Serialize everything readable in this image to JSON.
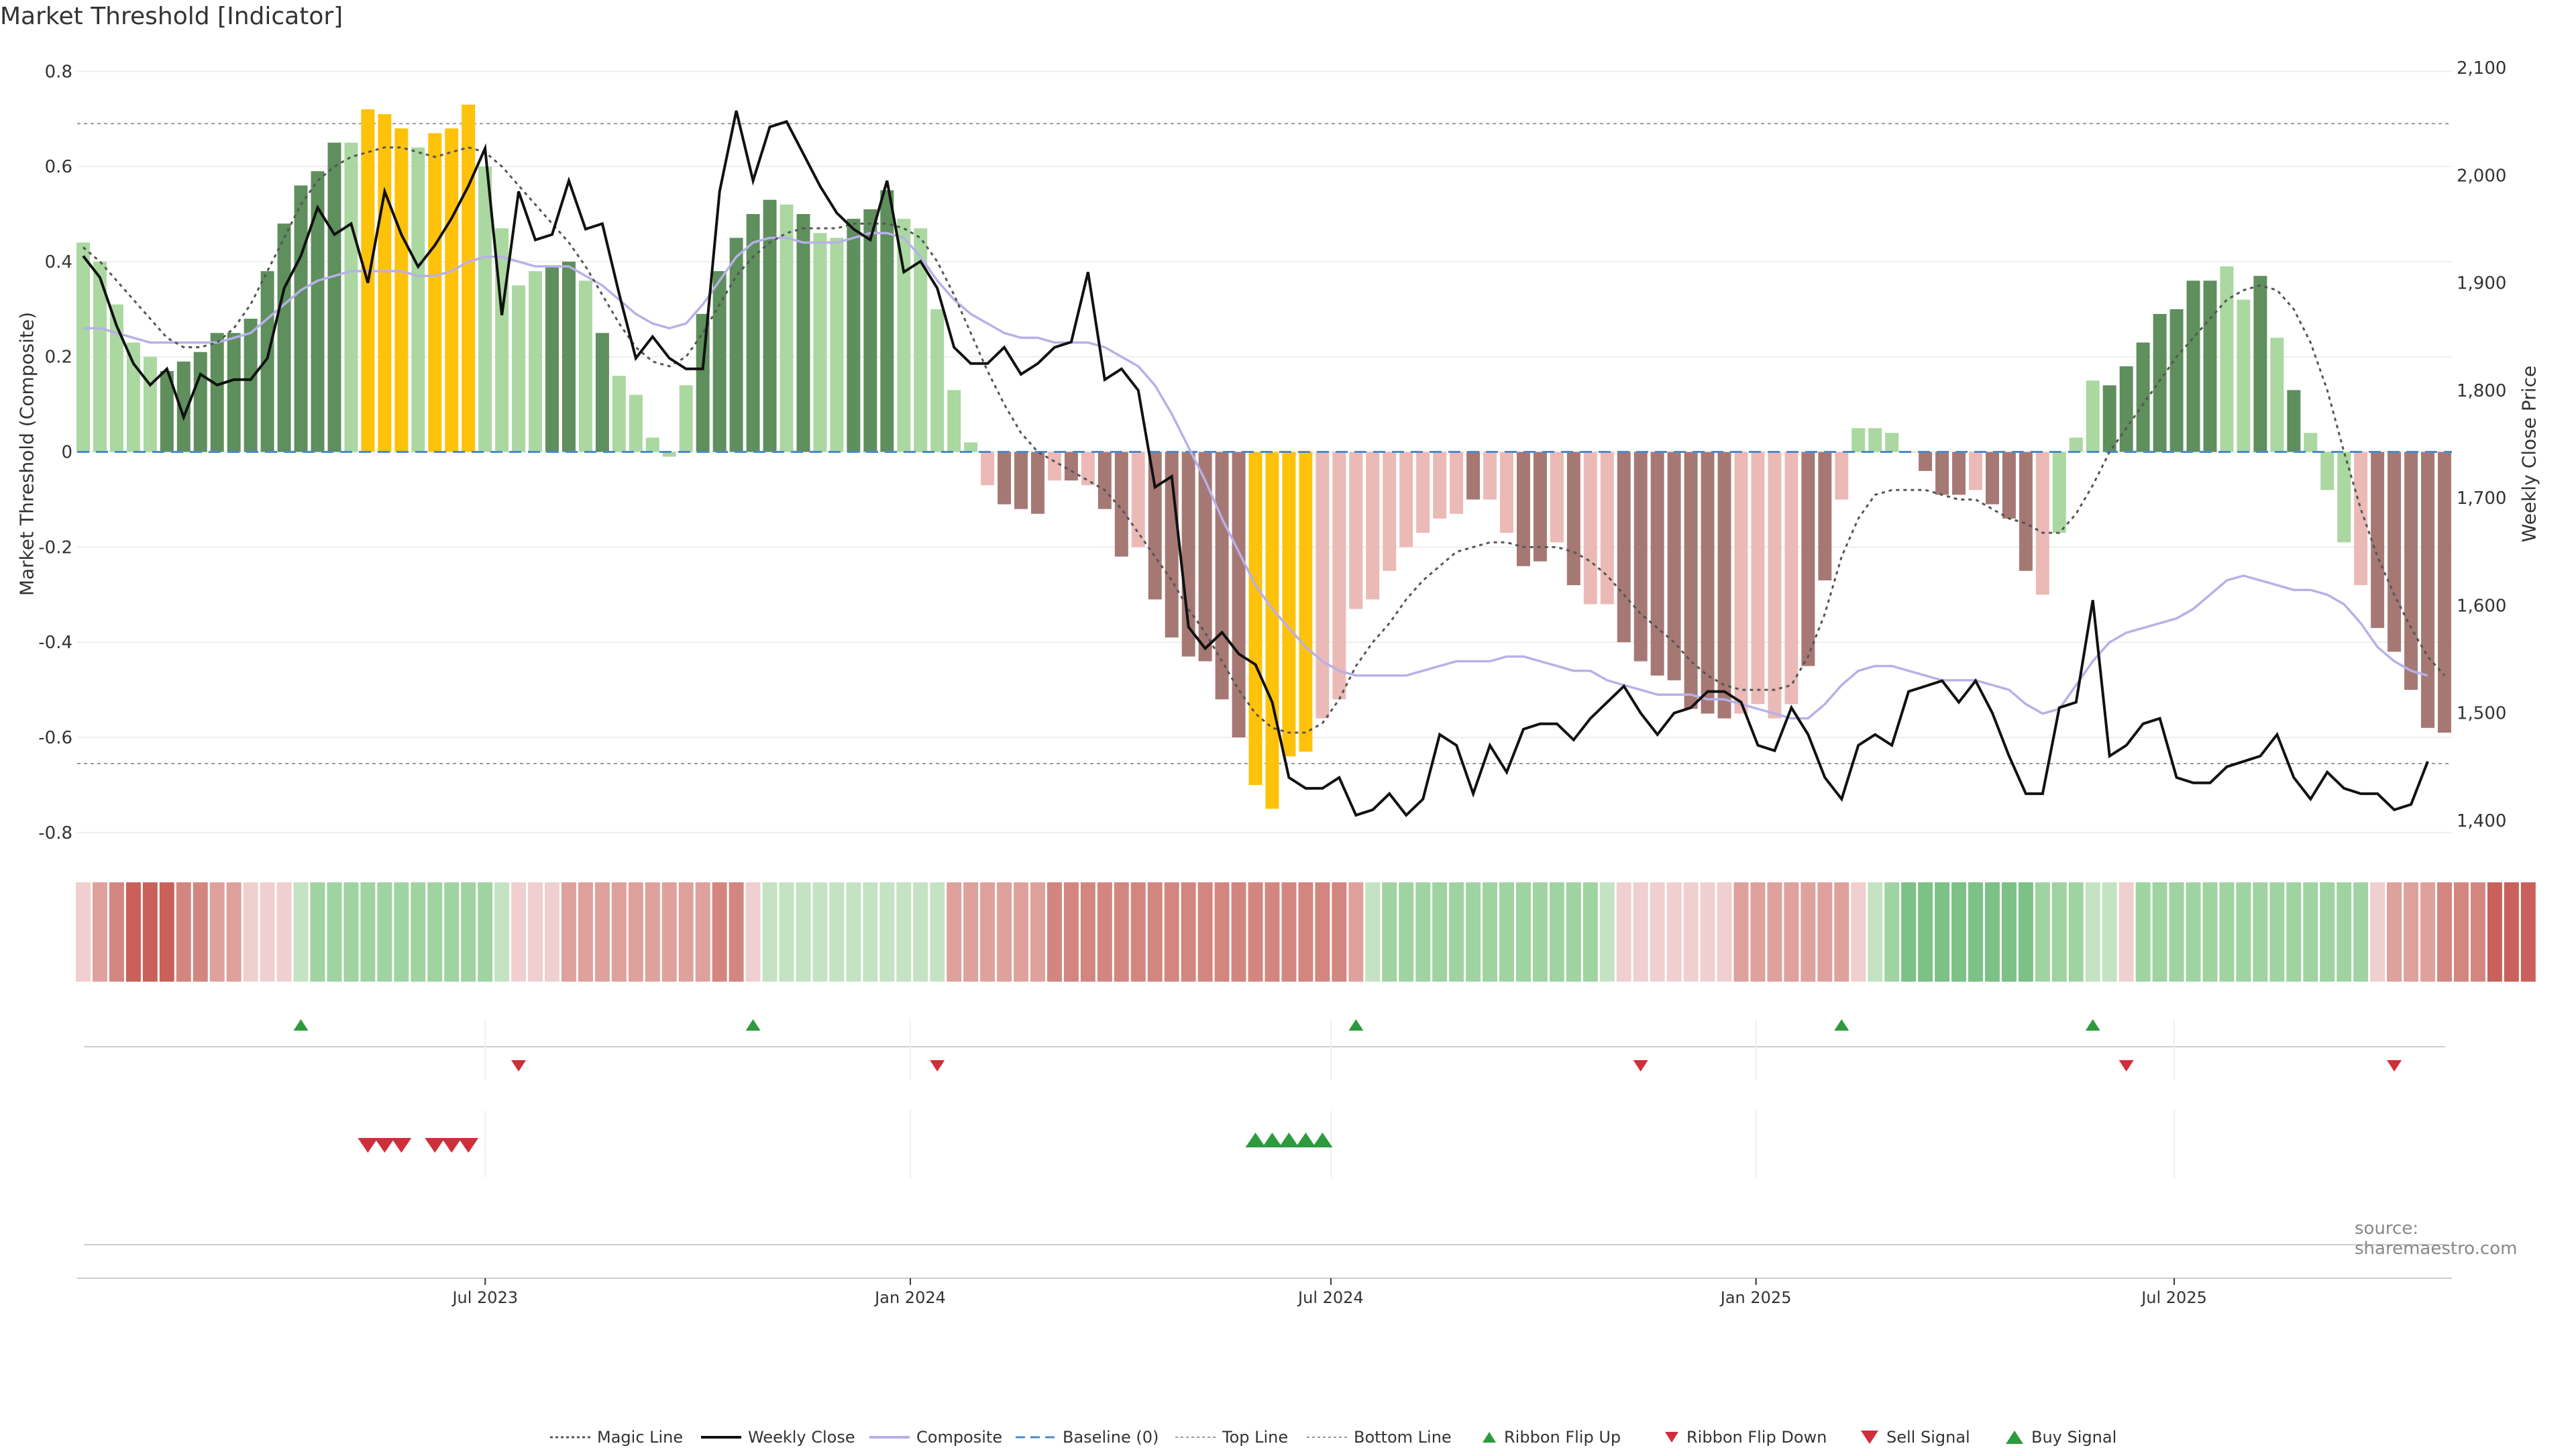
{
  "title": "Market Threshold [Indicator]",
  "source": "source: sharemaestro.com",
  "colors": {
    "dark_green": "#5e8f5c",
    "light_green": "#aad8a0",
    "yellow": "#ffc20a",
    "light_red": "#ebbab6",
    "dark_red": "#a67874",
    "magic": "#555555",
    "close": "#111111",
    "composite": "#b8b0e8",
    "baseline": "#4c8ac8",
    "signal_up": "#2e9a3e",
    "signal_down": "#d12d3a"
  },
  "chart_data": {
    "type": "bar",
    "title": "Market Threshold [Indicator]",
    "ylabel": "Market Threshold (Composite)",
    "ylabel_right": "Weekly Close Price",
    "ylim": [
      -0.82,
      0.83
    ],
    "ylim_right": [
      1380,
      2110
    ],
    "yticks": [
      "0.8",
      "0.6",
      "0.4",
      "0.2",
      "0",
      "-0.2",
      "-0.4",
      "-0.6",
      "-0.8"
    ],
    "yticks_right": [
      "2,100",
      "2,000",
      "1,900",
      "1,800",
      "1,700",
      "1,600",
      "1,500",
      "1,400"
    ],
    "x_start": "2023-01-08",
    "x_end": "2025-10-26",
    "x_ticks": [
      {
        "label": "Jul 2023",
        "date": "2023-07-01"
      },
      {
        "label": "Jan 2024",
        "date": "2024-01-01"
      },
      {
        "label": "Jul 2024",
        "date": "2024-07-01"
      },
      {
        "label": "Jan 2025",
        "date": "2025-01-01"
      },
      {
        "label": "Jul 2025",
        "date": "2025-07-01"
      }
    ],
    "top_line": 0.69,
    "bottom_line": -0.655,
    "bars": [
      0.44,
      0.4,
      0.31,
      0.23,
      0.2,
      0.17,
      0.19,
      0.21,
      0.25,
      0.25,
      0.28,
      0.38,
      0.48,
      0.56,
      0.59,
      0.65,
      0.65,
      0.72,
      0.71,
      0.68,
      0.64,
      0.67,
      0.68,
      0.73,
      0.6,
      0.47,
      0.35,
      0.38,
      0.39,
      0.4,
      0.36,
      0.25,
      0.16,
      0.12,
      0.03,
      -0.01,
      0.14,
      0.29,
      0.38,
      0.45,
      0.5,
      0.53,
      0.52,
      0.5,
      0.46,
      0.45,
      0.49,
      0.51,
      0.55,
      0.49,
      0.47,
      0.3,
      0.13,
      0.02,
      -0.07,
      -0.11,
      -0.12,
      -0.13,
      -0.06,
      -0.06,
      -0.07,
      -0.12,
      -0.22,
      -0.2,
      -0.31,
      -0.39,
      -0.43,
      -0.44,
      -0.52,
      -0.6,
      -0.7,
      -0.75,
      -0.64,
      -0.63,
      -0.56,
      -0.52,
      -0.33,
      -0.31,
      -0.25,
      -0.2,
      -0.17,
      -0.14,
      -0.13,
      -0.1,
      -0.1,
      -0.17,
      -0.24,
      -0.23,
      -0.19,
      -0.28,
      -0.32,
      -0.32,
      -0.4,
      -0.44,
      -0.47,
      -0.48,
      -0.54,
      -0.55,
      -0.56,
      -0.55,
      -0.53,
      -0.56,
      -0.53,
      -0.45,
      -0.27,
      -0.1,
      0.05,
      0.05,
      0.04,
      0.0,
      -0.04,
      -0.09,
      -0.09,
      -0.08,
      -0.11,
      -0.14,
      -0.25,
      -0.3,
      -0.17,
      0.03,
      0.15,
      0.14,
      0.18,
      0.23,
      0.29,
      0.3,
      0.36,
      0.36,
      0.39,
      0.32,
      0.37,
      0.24,
      0.13,
      0.04,
      -0.08,
      -0.19,
      -0.28,
      -0.37,
      -0.42,
      -0.5,
      -0.58,
      -0.59
    ],
    "bar_classes": [
      "lg",
      "lg",
      "lg",
      "lg",
      "lg",
      "dg",
      "dg",
      "dg",
      "dg",
      "dg",
      "dg",
      "dg",
      "dg",
      "dg",
      "dg",
      "dg",
      "lg",
      "y",
      "y",
      "y",
      "lg",
      "y",
      "y",
      "y",
      "lg",
      "lg",
      "lg",
      "lg",
      "dg",
      "dg",
      "lg",
      "dg",
      "lg",
      "lg",
      "lg",
      "lg",
      "lg",
      "dg",
      "dg",
      "dg",
      "dg",
      "dg",
      "lg",
      "dg",
      "lg",
      "lg",
      "dg",
      "dg",
      "dg",
      "lg",
      "lg",
      "lg",
      "lg",
      "lg",
      "lr",
      "dr",
      "dr",
      "dr",
      "lr",
      "dr",
      "lr",
      "dr",
      "dr",
      "lr",
      "dr",
      "dr",
      "dr",
      "dr",
      "dr",
      "dr",
      "y",
      "y",
      "y",
      "y",
      "lr",
      "lr",
      "lr",
      "lr",
      "lr",
      "lr",
      "lr",
      "lr",
      "lr",
      "dr",
      "lr",
      "lr",
      "dr",
      "dr",
      "lr",
      "dr",
      "lr",
      "lr",
      "dr",
      "dr",
      "dr",
      "dr",
      "dr",
      "dr",
      "dr",
      "lr",
      "lr",
      "lr",
      "lr",
      "dr",
      "dr",
      "lr",
      "lg",
      "lg",
      "lg",
      "lr",
      "dr",
      "dr",
      "dr",
      "lr",
      "dr",
      "dr",
      "dr",
      "lr",
      "lg",
      "lg",
      "lg",
      "dg",
      "dg",
      "dg",
      "dg",
      "dg",
      "dg",
      "dg",
      "lg",
      "lg",
      "dg",
      "lg",
      "dg",
      "lg",
      "lg",
      "lg",
      "lr",
      "dr",
      "dr",
      "dr",
      "dr",
      "dr",
      "dr",
      "dr"
    ],
    "magic_line": [
      0.43,
      0.4,
      0.36,
      0.32,
      0.28,
      0.24,
      0.22,
      0.22,
      0.23,
      0.26,
      0.31,
      0.38,
      0.45,
      0.52,
      0.57,
      0.6,
      0.62,
      0.63,
      0.64,
      0.64,
      0.63,
      0.62,
      0.63,
      0.64,
      0.63,
      0.6,
      0.56,
      0.52,
      0.48,
      0.44,
      0.39,
      0.33,
      0.27,
      0.22,
      0.19,
      0.18,
      0.2,
      0.25,
      0.31,
      0.37,
      0.41,
      0.44,
      0.46,
      0.47,
      0.47,
      0.47,
      0.48,
      0.48,
      0.48,
      0.47,
      0.45,
      0.4,
      0.33,
      0.25,
      0.17,
      0.1,
      0.04,
      0.0,
      -0.02,
      -0.04,
      -0.06,
      -0.08,
      -0.12,
      -0.17,
      -0.22,
      -0.27,
      -0.33,
      -0.38,
      -0.44,
      -0.5,
      -0.55,
      -0.58,
      -0.59,
      -0.59,
      -0.57,
      -0.52,
      -0.45,
      -0.4,
      -0.36,
      -0.31,
      -0.27,
      -0.24,
      -0.21,
      -0.2,
      -0.19,
      -0.19,
      -0.2,
      -0.2,
      -0.2,
      -0.21,
      -0.23,
      -0.26,
      -0.3,
      -0.34,
      -0.37,
      -0.4,
      -0.44,
      -0.47,
      -0.49,
      -0.5,
      -0.5,
      -0.5,
      -0.49,
      -0.43,
      -0.34,
      -0.22,
      -0.14,
      -0.09,
      -0.08,
      -0.08,
      -0.08,
      -0.09,
      -0.1,
      -0.1,
      -0.12,
      -0.14,
      -0.15,
      -0.17,
      -0.17,
      -0.13,
      -0.07,
      0.0,
      0.05,
      0.1,
      0.15,
      0.2,
      0.24,
      0.28,
      0.32,
      0.34,
      0.35,
      0.34,
      0.3,
      0.23,
      0.13,
      0.0,
      -0.12,
      -0.22,
      -0.3,
      -0.37,
      -0.43,
      -0.47
    ],
    "composite": [
      0.26,
      0.26,
      0.25,
      0.24,
      0.23,
      0.23,
      0.23,
      0.23,
      0.23,
      0.24,
      0.25,
      0.28,
      0.31,
      0.34,
      0.36,
      0.37,
      0.38,
      0.38,
      0.38,
      0.38,
      0.37,
      0.37,
      0.38,
      0.4,
      0.41,
      0.41,
      0.4,
      0.39,
      0.39,
      0.39,
      0.37,
      0.35,
      0.32,
      0.29,
      0.27,
      0.26,
      0.27,
      0.31,
      0.36,
      0.41,
      0.44,
      0.45,
      0.45,
      0.44,
      0.44,
      0.44,
      0.45,
      0.46,
      0.46,
      0.45,
      0.41,
      0.36,
      0.32,
      0.29,
      0.27,
      0.25,
      0.24,
      0.24,
      0.23,
      0.23,
      0.23,
      0.22,
      0.2,
      0.18,
      0.14,
      0.08,
      0.01,
      -0.06,
      -0.14,
      -0.21,
      -0.28,
      -0.33,
      -0.37,
      -0.41,
      -0.44,
      -0.46,
      -0.47,
      -0.47,
      -0.47,
      -0.47,
      -0.46,
      -0.45,
      -0.44,
      -0.44,
      -0.44,
      -0.43,
      -0.43,
      -0.44,
      -0.45,
      -0.46,
      -0.46,
      -0.48,
      -0.49,
      -0.5,
      -0.51,
      -0.51,
      -0.51,
      -0.52,
      -0.52,
      -0.53,
      -0.54,
      -0.55,
      -0.56,
      -0.56,
      -0.53,
      -0.49,
      -0.46,
      -0.45,
      -0.45,
      -0.46,
      -0.47,
      -0.48,
      -0.48,
      -0.48,
      -0.49,
      -0.5,
      -0.53,
      -0.55,
      -0.54,
      -0.49,
      -0.44,
      -0.4,
      -0.38,
      -0.37,
      -0.36,
      -0.35,
      -0.33,
      -0.3,
      -0.27,
      -0.26,
      -0.27,
      -0.28,
      -0.29,
      -0.29,
      -0.3,
      -0.32,
      -0.36,
      -0.41,
      -0.44,
      -0.46,
      -0.47
    ],
    "weekly_close": [
      1925,
      1905,
      1860,
      1825,
      1805,
      1820,
      1775,
      1815,
      1805,
      1810,
      1810,
      1830,
      1895,
      1925,
      1970,
      1945,
      1955,
      1900,
      1985,
      1945,
      1915,
      1935,
      1960,
      1990,
      2025,
      1870,
      1985,
      1940,
      1945,
      1995,
      1950,
      1955,
      1890,
      1830,
      1850,
      1830,
      1820,
      1820,
      1985,
      2060,
      1995,
      2045,
      2050,
      2020,
      1990,
      1965,
      1950,
      1940,
      1995,
      1910,
      1920,
      1895,
      1840,
      1825,
      1825,
      1840,
      1815,
      1825,
      1840,
      1845,
      1910,
      1810,
      1820,
      1800,
      1710,
      1720,
      1580,
      1560,
      1575,
      1555,
      1545,
      1510,
      1440,
      1430,
      1430,
      1440,
      1405,
      1410,
      1425,
      1405,
      1420,
      1480,
      1470,
      1425,
      1470,
      1445,
      1485,
      1490,
      1490,
      1475,
      1495,
      1510,
      1525,
      1500,
      1480,
      1500,
      1505,
      1520,
      1520,
      1510,
      1470,
      1465,
      1505,
      1480,
      1440,
      1420,
      1470,
      1480,
      1470,
      1520,
      1525,
      1530,
      1510,
      1530,
      1500,
      1460,
      1425,
      1425,
      1505,
      1510,
      1605,
      1460,
      1470,
      1490,
      1495,
      1440,
      1435,
      1435,
      1450,
      1455,
      1460,
      1480,
      1440,
      1420,
      1445,
      1430,
      1425,
      1425,
      1410,
      1415,
      1455
    ],
    "ribbon": [
      -1,
      -2,
      -3,
      -4,
      -4,
      -4,
      -3,
      -3,
      -2,
      -2,
      -1,
      -1,
      -1,
      1,
      2,
      2,
      2,
      2,
      2,
      2,
      2,
      2,
      2,
      2,
      2,
      1,
      -1,
      -1,
      -1,
      -2,
      -2,
      -2,
      -2,
      -2,
      -2,
      -2,
      -2,
      -2,
      -3,
      -3,
      -1,
      1,
      1,
      1,
      1,
      1,
      1,
      1,
      1,
      1,
      1,
      1,
      -2,
      -2,
      -2,
      -2,
      -2,
      -2,
      -3,
      -3,
      -3,
      -3,
      -3,
      -3,
      -3,
      -3,
      -3,
      -3,
      -3,
      -3,
      -3,
      -3,
      -3,
      -3,
      -3,
      -3,
      -2,
      1,
      2,
      2,
      2,
      2,
      2,
      2,
      2,
      2,
      2,
      2,
      2,
      2,
      2,
      1,
      -1,
      -1,
      -1,
      -1,
      -1,
      -1,
      -1,
      -2,
      -2,
      -2,
      -2,
      -2,
      -2,
      -2,
      -1,
      1,
      2,
      3,
      3,
      3,
      3,
      3,
      3,
      3,
      3,
      2,
      2,
      2,
      1,
      1,
      -1,
      2,
      2,
      2,
      2,
      2,
      2,
      2,
      2,
      2,
      2,
      2,
      2,
      2,
      2,
      -1,
      -2,
      -2,
      -2,
      -3,
      -3,
      -3,
      -4,
      -4,
      -4
    ],
    "ribbon_flip_up_idx": [
      13,
      40,
      76,
      105,
      120
    ],
    "ribbon_flip_down_idx": [
      26,
      51,
      93,
      122,
      138
    ],
    "sell_signal_idx": [
      17,
      18,
      19,
      21,
      22,
      23
    ],
    "buy_signal_idx": [
      70,
      71,
      72,
      73,
      74
    ]
  },
  "legend": [
    {
      "label": "Magic Line",
      "icon": "dotted-line"
    },
    {
      "label": "Weekly Close",
      "icon": "solid-line"
    },
    {
      "label": "Composite",
      "icon": "purple-line"
    },
    {
      "label": "Baseline (0)",
      "icon": "dashed-blue-line"
    },
    {
      "label": "Top Line",
      "icon": "dotted-gray-line"
    },
    {
      "label": "Bottom Line",
      "icon": "dotted-gray-line"
    },
    {
      "label": "Ribbon Flip Up",
      "icon": "small-up-triangle"
    },
    {
      "label": "Ribbon Flip Down",
      "icon": "small-down-triangle"
    },
    {
      "label": "Sell Signal",
      "icon": "down-triangle"
    },
    {
      "label": "Buy Signal",
      "icon": "up-triangle"
    }
  ]
}
